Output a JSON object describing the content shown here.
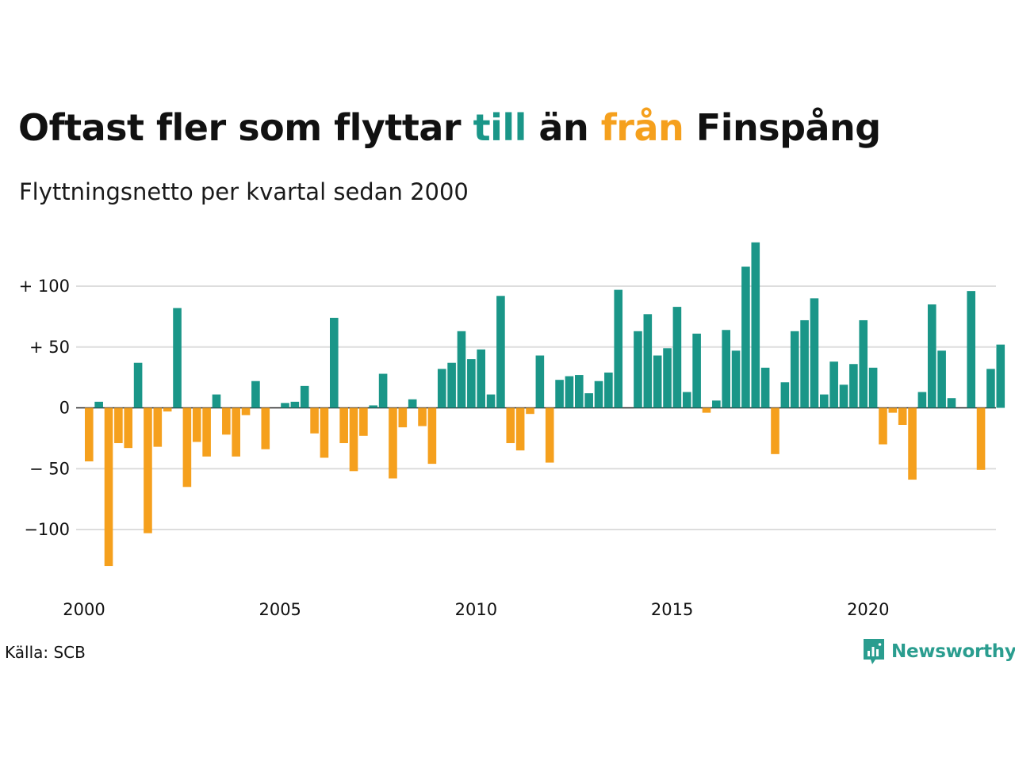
{
  "header": {
    "title_parts": [
      {
        "text": "Oftast fler som flyttar ",
        "color": "#111111"
      },
      {
        "text": "till",
        "color": "#1a9688"
      },
      {
        "text": " än ",
        "color": "#111111"
      },
      {
        "text": "från",
        "color": "#f5a01d"
      },
      {
        "text": " Finspång",
        "color": "#111111"
      }
    ],
    "subtitle": "Flyttningsnetto per kvartal sedan 2000"
  },
  "footer": {
    "source": "Källa: SCB",
    "brand": "Newsworthy",
    "brand_icon": "chart-bubble-icon",
    "brand_color": "#2a9d8f"
  },
  "colors": {
    "positive": "#1a9688",
    "negative": "#f5a01d",
    "grid": "#dddddd",
    "zero": "#222222"
  },
  "chart_data": {
    "type": "bar",
    "x_start": "2000 Q1",
    "categories": [
      "2000 Q1",
      "2000 Q2",
      "2000 Q3",
      "2000 Q4",
      "2001 Q1",
      "2001 Q2",
      "2001 Q3",
      "2001 Q4",
      "2002 Q1",
      "2002 Q2",
      "2002 Q3",
      "2002 Q4",
      "2003 Q1",
      "2003 Q2",
      "2003 Q3",
      "2003 Q4",
      "2004 Q1",
      "2004 Q2",
      "2004 Q3",
      "2004 Q4",
      "2005 Q1",
      "2005 Q2",
      "2005 Q3",
      "2005 Q4",
      "2006 Q1",
      "2006 Q2",
      "2006 Q3",
      "2006 Q4",
      "2007 Q1",
      "2007 Q2",
      "2007 Q3",
      "2007 Q4",
      "2008 Q1",
      "2008 Q2",
      "2008 Q3",
      "2008 Q4",
      "2009 Q1",
      "2009 Q2",
      "2009 Q3",
      "2009 Q4",
      "2010 Q1",
      "2010 Q2",
      "2010 Q3",
      "2010 Q4",
      "2011 Q1",
      "2011 Q2",
      "2011 Q3",
      "2011 Q4",
      "2012 Q1",
      "2012 Q2",
      "2012 Q3",
      "2012 Q4",
      "2013 Q1",
      "2013 Q2",
      "2013 Q3",
      "2013 Q4",
      "2014 Q1",
      "2014 Q2",
      "2014 Q3",
      "2014 Q4",
      "2015 Q1",
      "2015 Q2",
      "2015 Q3",
      "2015 Q4",
      "2016 Q1",
      "2016 Q2",
      "2016 Q3",
      "2016 Q4",
      "2017 Q1",
      "2017 Q2",
      "2017 Q3",
      "2017 Q4",
      "2018 Q1",
      "2018 Q2",
      "2018 Q3",
      "2018 Q4",
      "2019 Q1",
      "2019 Q2",
      "2019 Q3",
      "2019 Q4",
      "2020 Q1",
      "2020 Q2",
      "2020 Q3",
      "2020 Q4",
      "2021 Q1",
      "2021 Q2",
      "2021 Q3",
      "2021 Q4",
      "2022 Q1",
      "2022 Q2",
      "2022 Q3",
      "2022 Q4",
      "2023 Q1",
      "2023 Q2"
    ],
    "values": [
      -44,
      5,
      -130,
      -29,
      -33,
      37,
      -103,
      -32,
      -3,
      82,
      -65,
      -28,
      -40,
      11,
      -22,
      -40,
      -6,
      22,
      -34,
      0,
      4,
      5,
      18,
      -21,
      -41,
      74,
      -29,
      -52,
      -23,
      2,
      28,
      -58,
      -16,
      7,
      -15,
      -46,
      32,
      37,
      63,
      40,
      48,
      11,
      92,
      -29,
      -35,
      -5,
      43,
      -45,
      23,
      26,
      27,
      12,
      22,
      29,
      97,
      0,
      63,
      77,
      43,
      49,
      83,
      13,
      61,
      -4,
      6,
      64,
      47,
      116,
      136,
      33,
      -38,
      21,
      63,
      72,
      90,
      11,
      38,
      19,
      36,
      72,
      33,
      -30,
      -4,
      -14,
      -59,
      13,
      85,
      47,
      8,
      0,
      96,
      -51,
      32,
      52
    ],
    "ylim": [
      -135,
      140
    ],
    "y_ticks": [
      {
        "value": 100,
        "label": "+ 100"
      },
      {
        "value": 50,
        "label": "+  50"
      },
      {
        "value": 0,
        "label": "0"
      },
      {
        "value": -50,
        "label": "− 50"
      },
      {
        "value": -100,
        "label": "−100"
      }
    ],
    "x_ticks": [
      "2000",
      "2005",
      "2010",
      "2015",
      "2020"
    ],
    "grid": true,
    "legend": "none",
    "title": "Oftast fler som flyttar till än från Finspång",
    "subtitle": "Flyttningsnetto per kvartal sedan 2000",
    "xlabel": "",
    "ylabel": ""
  }
}
